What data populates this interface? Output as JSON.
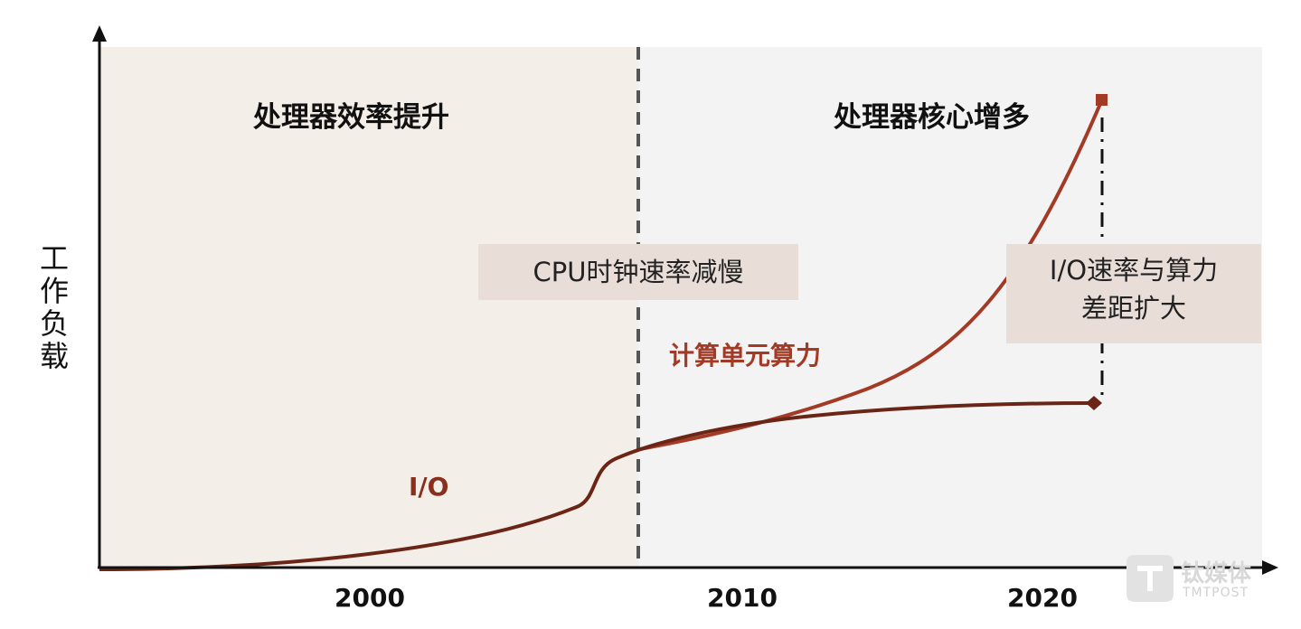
{
  "ylabel_chars": [
    "工",
    "作",
    "负",
    "载"
  ],
  "regions": {
    "left_title": "处理器效率提升",
    "right_title": "处理器核心增多"
  },
  "notes": {
    "cpu_slowdown": "CPU时钟速率减慢",
    "gap_line1": "I/O速率与算力",
    "gap_line2": "差距扩大"
  },
  "series": {
    "compute": "计算单元算力",
    "io": "I/O"
  },
  "x_ticks": [
    "2000",
    "2010",
    "2020"
  ],
  "watermark": {
    "brand": "钛媒体",
    "sub": "TMTPOST"
  },
  "colors": {
    "left_bg": "#f4eee8",
    "right_bg": "#f3f3f3",
    "compute_line": "#a23a25",
    "io_line": "#6b2516",
    "compute_label": "#a23a25",
    "io_label": "#8a2f1c",
    "note_bg": "#e9ddd8"
  }
}
